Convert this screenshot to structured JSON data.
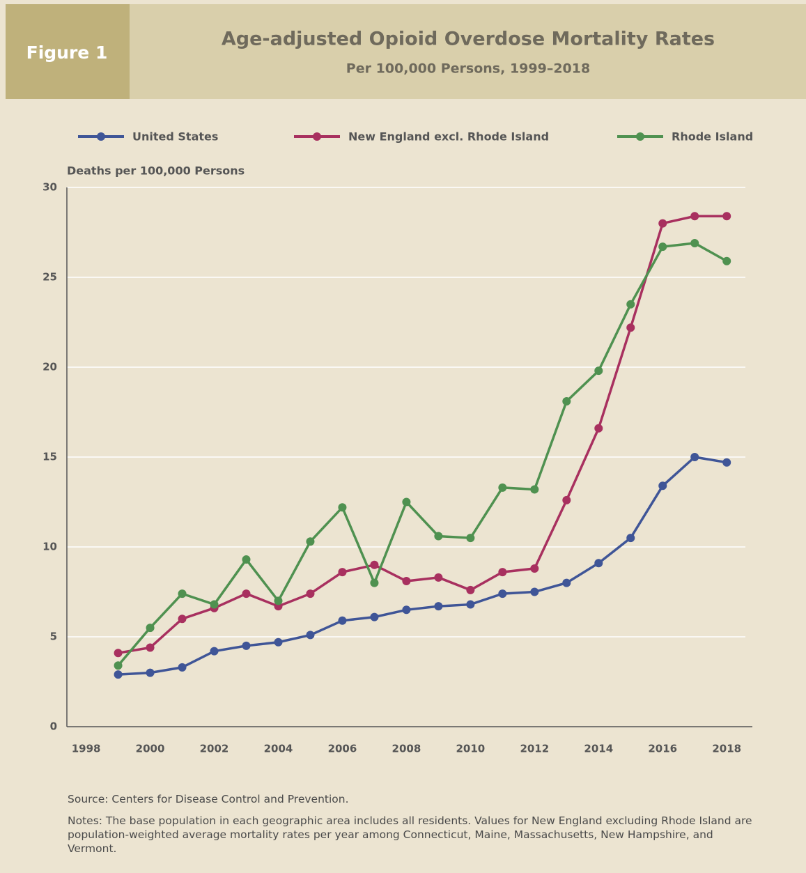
{
  "chart_data": {
    "type": "line",
    "figure_label": "Figure 1",
    "title": "Age-adjusted Opioid Overdose Mortality Rates",
    "subtitle": "Per 100,000 Persons, 1999–2018",
    "y_axis_label": "Deaths per 100,000 Persons",
    "x": [
      1999,
      2000,
      2001,
      2002,
      2003,
      2004,
      2005,
      2006,
      2007,
      2008,
      2009,
      2010,
      2011,
      2012,
      2013,
      2014,
      2015,
      2016,
      2017,
      2018
    ],
    "series": [
      {
        "name": "United States",
        "color": "#3f5597",
        "values": [
          2.9,
          3.0,
          3.3,
          4.2,
          4.5,
          4.7,
          5.1,
          5.9,
          6.1,
          6.5,
          6.7,
          6.8,
          7.4,
          7.5,
          8.0,
          9.1,
          10.5,
          13.4,
          15.0,
          14.7
        ]
      },
      {
        "name": "New England excl. Rhode Island",
        "color": "#a8305f",
        "values": [
          4.1,
          4.4,
          6.0,
          6.6,
          7.4,
          6.7,
          7.4,
          8.6,
          9.0,
          8.1,
          8.3,
          7.6,
          8.6,
          8.8,
          12.6,
          16.6,
          22.2,
          28.0,
          28.4,
          28.4
        ]
      },
      {
        "name": "Rhode Island",
        "color": "#4f9150",
        "values": [
          3.4,
          5.5,
          7.4,
          6.8,
          9.3,
          7.0,
          10.3,
          12.2,
          8.0,
          12.5,
          10.6,
          10.5,
          13.3,
          13.2,
          18.1,
          19.8,
          23.5,
          26.7,
          26.9,
          25.9
        ]
      }
    ],
    "xlim": [
      1997.4,
      2018.8
    ],
    "xticks": [
      1998,
      2000,
      2002,
      2004,
      2006,
      2008,
      2010,
      2012,
      2014,
      2016,
      2018
    ],
    "ylim": [
      0,
      30
    ],
    "yticks": [
      0,
      5,
      10,
      15,
      20,
      25,
      30
    ],
    "grid": true,
    "source": "Source: Centers for Disease Control and Prevention.",
    "notes": "Notes: The base population in each geographic area includes all residents. Values for New England excluding Rhode Island are population-weighted average mortality rates per year among Connecticut, Maine, Massachusetts, New Hampshire, and Vermont."
  }
}
